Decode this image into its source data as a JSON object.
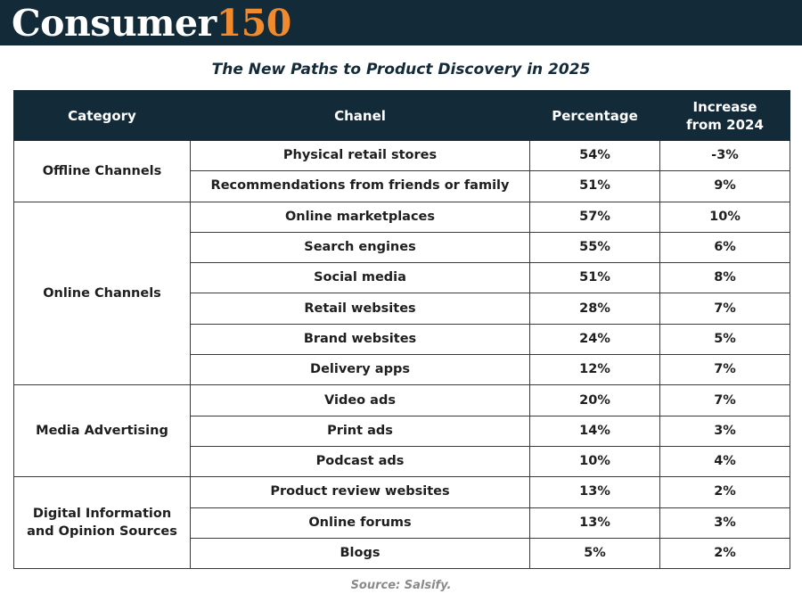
{
  "brand": {
    "name": "Consumer",
    "number": "150"
  },
  "title": "The New Paths to Product Discovery in 2025",
  "columns": [
    "Category",
    "Chanel",
    "Percentage",
    "Increase\nfrom 2024"
  ],
  "groups": [
    {
      "category": "Offline Channels",
      "rows": [
        {
          "channel": "Physical retail stores",
          "percentage": "54%",
          "increase": "-3%"
        },
        {
          "channel": "Recommendations from friends or family",
          "percentage": "51%",
          "increase": "9%"
        }
      ]
    },
    {
      "category": "Online Channels",
      "rows": [
        {
          "channel": "Online marketplaces",
          "percentage": "57%",
          "increase": "10%"
        },
        {
          "channel": "Search engines",
          "percentage": "55%",
          "increase": "6%"
        },
        {
          "channel": "Social media",
          "percentage": "51%",
          "increase": "8%"
        },
        {
          "channel": "Retail websites",
          "percentage": "28%",
          "increase": "7%"
        },
        {
          "channel": "Brand websites",
          "percentage": "24%",
          "increase": "5%"
        },
        {
          "channel": "Delivery apps",
          "percentage": "12%",
          "increase": "7%"
        }
      ]
    },
    {
      "category": "Media Advertising",
      "rows": [
        {
          "channel": "Video ads",
          "percentage": "20%",
          "increase": "7%"
        },
        {
          "channel": "Print ads",
          "percentage": "14%",
          "increase": "3%"
        },
        {
          "channel": "Podcast ads",
          "percentage": "10%",
          "increase": "4%"
        }
      ]
    },
    {
      "category": "Digital Information\nand Opinion Sources",
      "rows": [
        {
          "channel": "Product review websites",
          "percentage": "13%",
          "increase": "2%"
        },
        {
          "channel": "Online forums",
          "percentage": "13%",
          "increase": "3%"
        },
        {
          "channel": "Blogs",
          "percentage": "5%",
          "increase": "2%"
        }
      ]
    }
  ],
  "source": "Source: Salsify.",
  "colors": {
    "header_bg": "#132a38",
    "accent": "#f08a2c"
  }
}
